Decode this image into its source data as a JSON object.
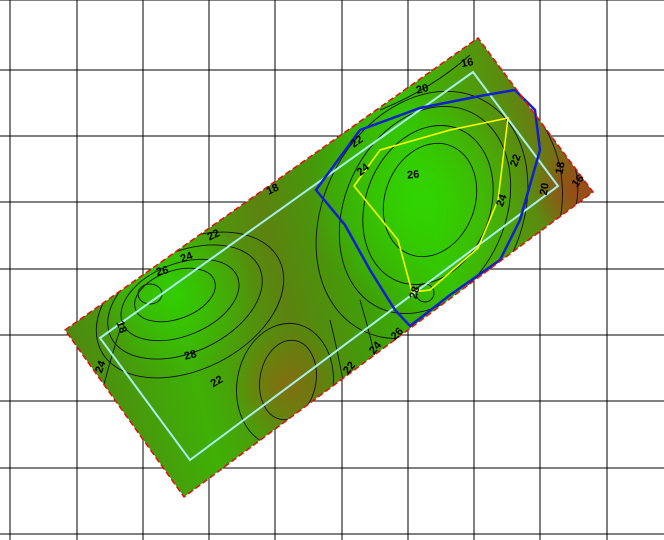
{
  "colors": {
    "background": "#ffffff",
    "grid": "#000000",
    "field_boundary": "#e01010",
    "inner_boundary": "#a8f0f0",
    "blue_zone": "#1020d0",
    "yellow_zone": "#ffff00",
    "surface_high": "#30c800",
    "surface_mid": "#5a8a10",
    "surface_low": "#8a5a10",
    "contour": "#111111"
  },
  "contour_labels": [
    "16",
    "20",
    "18",
    "20",
    "22",
    "24",
    "26",
    "28",
    "22",
    "24",
    "18",
    "22",
    "24",
    "26",
    "24",
    "22",
    "28",
    "26",
    "24",
    "22",
    "18",
    "16"
  ]
}
